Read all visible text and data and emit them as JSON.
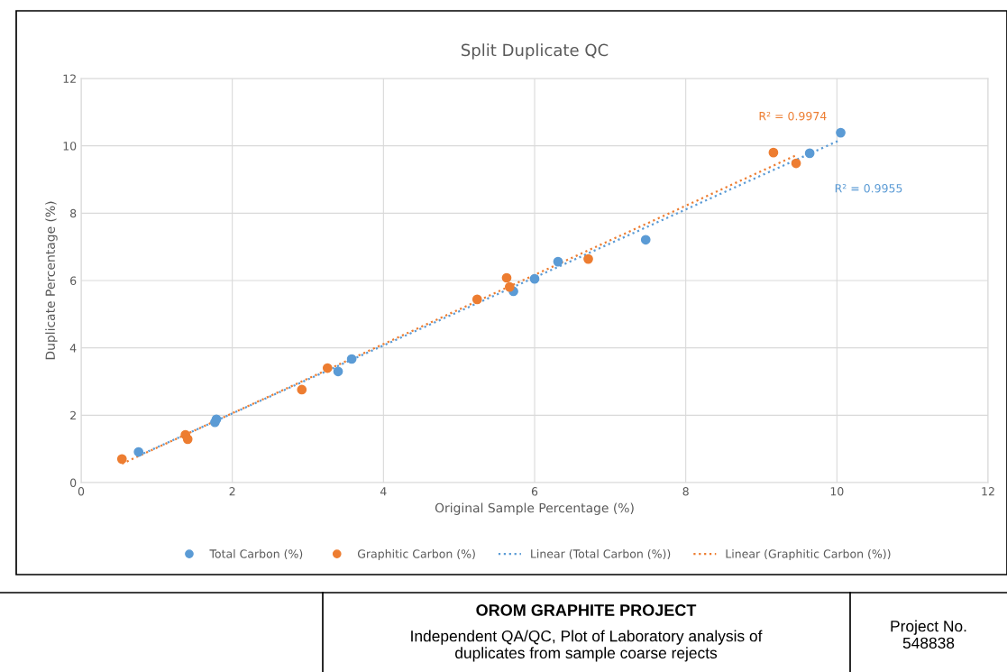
{
  "chart_data": {
    "type": "scatter",
    "title": "Split Duplicate QC",
    "xlabel": "Original Sample Percentage (%)",
    "ylabel": "Duplicate Percentage (%)",
    "xlim": [
      0,
      12
    ],
    "ylim": [
      0,
      12
    ],
    "xticks": [
      0,
      2,
      4,
      6,
      8,
      10,
      12
    ],
    "yticks": [
      0,
      2,
      4,
      6,
      8,
      10,
      12
    ],
    "grid": true,
    "legend": "bottom",
    "marker": "circle",
    "series": [
      {
        "name": "Total Carbon (%)",
        "color": "#5b9bd5",
        "x": [
          0.76,
          1.77,
          1.79,
          3.58,
          3.4,
          5.72,
          6.0,
          6.31,
          7.47,
          9.64,
          10.05
        ],
        "values": [
          0.91,
          1.79,
          1.88,
          3.67,
          3.3,
          5.68,
          6.05,
          6.56,
          7.21,
          9.78,
          10.39
        ]
      },
      {
        "name": "Graphitic Carbon (%)",
        "color": "#ed7d31",
        "x": [
          0.54,
          1.38,
          1.41,
          2.92,
          3.26,
          5.24,
          5.63,
          5.67,
          6.71,
          9.16,
          9.46
        ],
        "values": [
          0.7,
          1.42,
          1.29,
          2.76,
          3.4,
          5.44,
          6.08,
          5.81,
          6.64,
          9.8,
          9.48
        ]
      },
      {
        "name": "Linear (Total Carbon (%))",
        "type": "line",
        "line_style": "dotted",
        "marker": "none",
        "color": "#5b9bd5",
        "x": [
          0.76,
          10.05
        ],
        "values": [
          0.8,
          10.18
        ]
      },
      {
        "name": "Linear (Graphitic Carbon (%))",
        "type": "line",
        "line_style": "dotted",
        "marker": "none",
        "color": "#ed7d31",
        "x": [
          0.54,
          9.46
        ],
        "values": [
          0.56,
          9.72
        ]
      }
    ],
    "annotations": [
      "R² = 0.9974",
      "R² = 0.9955",
      "OROM GRAPHITE PROJECT",
      "Independent QA/QC, Plot of Laboratory analysis of duplicates from sample coarse rejects",
      "Project No. 548838"
    ]
  }
}
